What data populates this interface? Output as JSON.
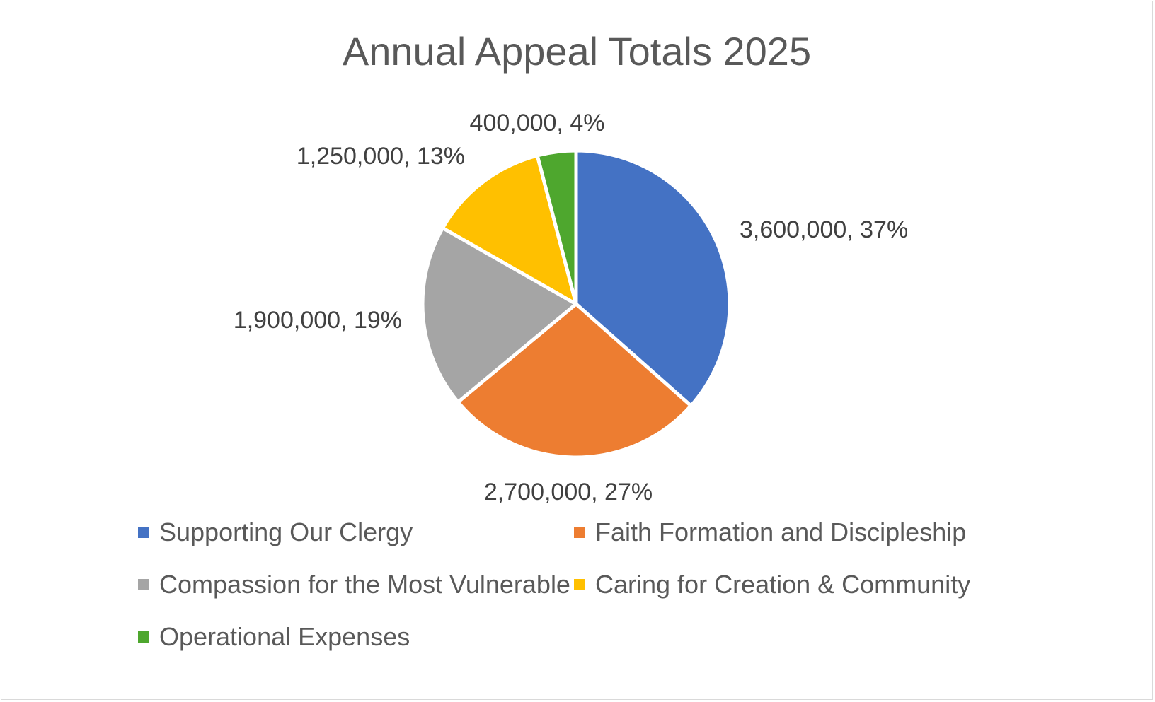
{
  "chart_data": {
    "type": "pie",
    "title": "Annual Appeal Totals 2025",
    "legend_position": "bottom",
    "slices": [
      {
        "name": "Supporting Our Clergy",
        "value": 3600000,
        "value_label": "3,600,000",
        "percent_label": "37%",
        "color": "#4472c4"
      },
      {
        "name": "Faith Formation and Discipleship",
        "value": 2700000,
        "value_label": "2,700,000",
        "percent_label": "27%",
        "color": "#ed7d31"
      },
      {
        "name": "Compassion for the Most Vulnerable",
        "value": 1900000,
        "value_label": "1,900,000",
        "percent_label": "19%",
        "color": "#a5a5a5"
      },
      {
        "name": "Caring for Creation & Community",
        "value": 1250000,
        "value_label": "1,250,000",
        "percent_label": "13%",
        "color": "#ffc000"
      },
      {
        "name": "Operational Expenses",
        "value": 400000,
        "value_label": "400,000",
        "percent_label": "4%",
        "color": "#4ea72e"
      }
    ]
  }
}
